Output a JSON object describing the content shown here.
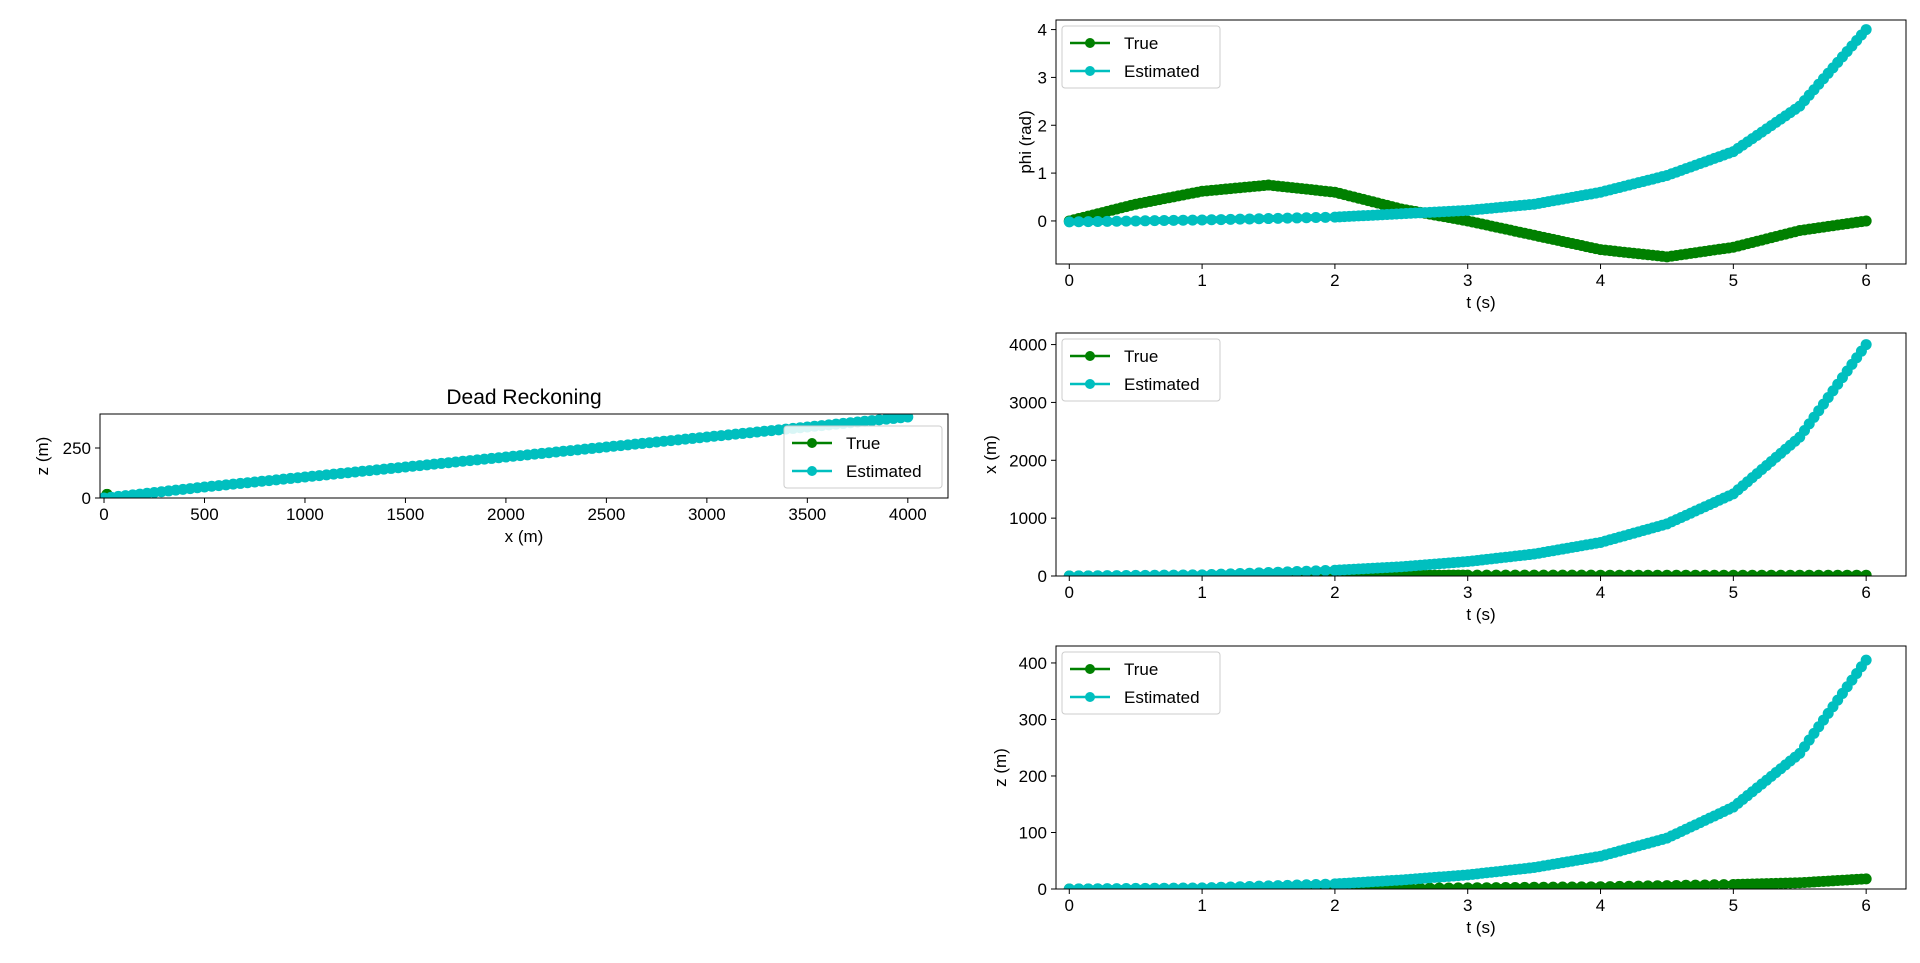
{
  "figure": {
    "background": "#ffffff"
  },
  "colors": {
    "true": "#008000",
    "estimated": "#00bfbf"
  },
  "legend_labels": [
    "True",
    "Estimated"
  ],
  "chart_data": [
    {
      "id": "dead_reckoning",
      "type": "scatter",
      "title": "Dead Reckoning",
      "xlabel": "x (m)",
      "ylabel": "z (m)",
      "xlim": [
        -20,
        4200
      ],
      "ylim": [
        0,
        420
      ],
      "xticks": [
        0,
        500,
        1000,
        1500,
        2000,
        2500,
        3000,
        3500,
        4000
      ],
      "yticks": [
        0,
        250
      ],
      "legend_position": "center-right",
      "series": [
        {
          "name": "True",
          "points": [
            [
              0,
              0
            ],
            [
              5,
              1
            ],
            [
              10,
              3
            ],
            [
              12,
              6
            ],
            [
              14,
              10
            ],
            [
              15,
              14
            ],
            [
              15,
              18
            ]
          ]
        },
        {
          "name": "Estimated",
          "points": [
            [
              0,
              0
            ],
            [
              500,
              55
            ],
            [
              1000,
              105
            ],
            [
              1500,
              155
            ],
            [
              2000,
              205
            ],
            [
              2500,
              255
            ],
            [
              3000,
              305
            ],
            [
              3500,
              355
            ],
            [
              4000,
              405
            ]
          ]
        }
      ]
    },
    {
      "id": "phi_vs_t",
      "type": "scatter",
      "title": "",
      "xlabel": "t (s)",
      "ylabel": "phi (rad)",
      "xlim": [
        -0.1,
        6.3
      ],
      "ylim": [
        -0.9,
        4.2
      ],
      "xticks": [
        0,
        1,
        2,
        3,
        4,
        5,
        6
      ],
      "yticks": [
        0,
        1,
        2,
        3,
        4
      ],
      "legend_position": "top-left",
      "series": [
        {
          "name": "True",
          "points": [
            [
              0,
              0.0
            ],
            [
              0.5,
              0.35
            ],
            [
              1.0,
              0.62
            ],
            [
              1.5,
              0.75
            ],
            [
              2.0,
              0.6
            ],
            [
              2.5,
              0.25
            ],
            [
              3.0,
              0.0
            ],
            [
              3.5,
              -0.3
            ],
            [
              4.0,
              -0.6
            ],
            [
              4.5,
              -0.75
            ],
            [
              5.0,
              -0.55
            ],
            [
              5.5,
              -0.2
            ],
            [
              6.0,
              0.0
            ]
          ]
        },
        {
          "name": "Estimated",
          "points": [
            [
              0,
              -0.02
            ],
            [
              1.0,
              0.02
            ],
            [
              2.0,
              0.08
            ],
            [
              2.5,
              0.15
            ],
            [
              3.0,
              0.22
            ],
            [
              3.5,
              0.35
            ],
            [
              4.0,
              0.6
            ],
            [
              4.5,
              0.95
            ],
            [
              5.0,
              1.45
            ],
            [
              5.5,
              2.4
            ],
            [
              6.0,
              4.0
            ]
          ]
        }
      ]
    },
    {
      "id": "x_vs_t",
      "type": "scatter",
      "title": "",
      "xlabel": "t (s)",
      "ylabel": "x (m)",
      "xlim": [
        -0.1,
        6.3
      ],
      "ylim": [
        0,
        4200
      ],
      "xticks": [
        0,
        1,
        2,
        3,
        4,
        5,
        6
      ],
      "yticks": [
        0,
        1000,
        2000,
        3000,
        4000
      ],
      "legend_position": "top-left",
      "series": [
        {
          "name": "True",
          "points": [
            [
              0,
              0
            ],
            [
              1.0,
              3
            ],
            [
              2.0,
              8
            ],
            [
              2.5,
              12
            ],
            [
              3.0,
              15
            ],
            [
              4.0,
              14
            ],
            [
              5.0,
              13
            ],
            [
              6.0,
              14
            ]
          ]
        },
        {
          "name": "Estimated",
          "points": [
            [
              0,
              0
            ],
            [
              1.0,
              20
            ],
            [
              2.0,
              100
            ],
            [
              2.5,
              160
            ],
            [
              3.0,
              250
            ],
            [
              3.5,
              380
            ],
            [
              4.0,
              580
            ],
            [
              4.5,
              900
            ],
            [
              5.0,
              1420
            ],
            [
              5.5,
              2400
            ],
            [
              6.0,
              4000
            ]
          ]
        }
      ]
    },
    {
      "id": "z_vs_t",
      "type": "scatter",
      "title": "",
      "xlabel": "t (s)",
      "ylabel": "z (m)",
      "xlim": [
        -0.1,
        6.3
      ],
      "ylim": [
        0,
        430
      ],
      "xticks": [
        0,
        1,
        2,
        3,
        4,
        5,
        6
      ],
      "yticks": [
        0,
        100,
        200,
        300,
        400
      ],
      "legend_position": "top-left",
      "series": [
        {
          "name": "True",
          "points": [
            [
              0,
              0
            ],
            [
              1.0,
              0.2
            ],
            [
              2.0,
              0.8
            ],
            [
              3.0,
              2
            ],
            [
              4.0,
              4
            ],
            [
              5.0,
              8
            ],
            [
              5.5,
              11
            ],
            [
              6.0,
              18
            ]
          ]
        },
        {
          "name": "Estimated",
          "points": [
            [
              0,
              0
            ],
            [
              1.0,
              2
            ],
            [
              2.0,
              9
            ],
            [
              2.5,
              16
            ],
            [
              3.0,
              25
            ],
            [
              3.5,
              38
            ],
            [
              4.0,
              58
            ],
            [
              4.5,
              90
            ],
            [
              5.0,
              145
            ],
            [
              5.5,
              240
            ],
            [
              6.0,
              405
            ]
          ]
        }
      ]
    }
  ]
}
